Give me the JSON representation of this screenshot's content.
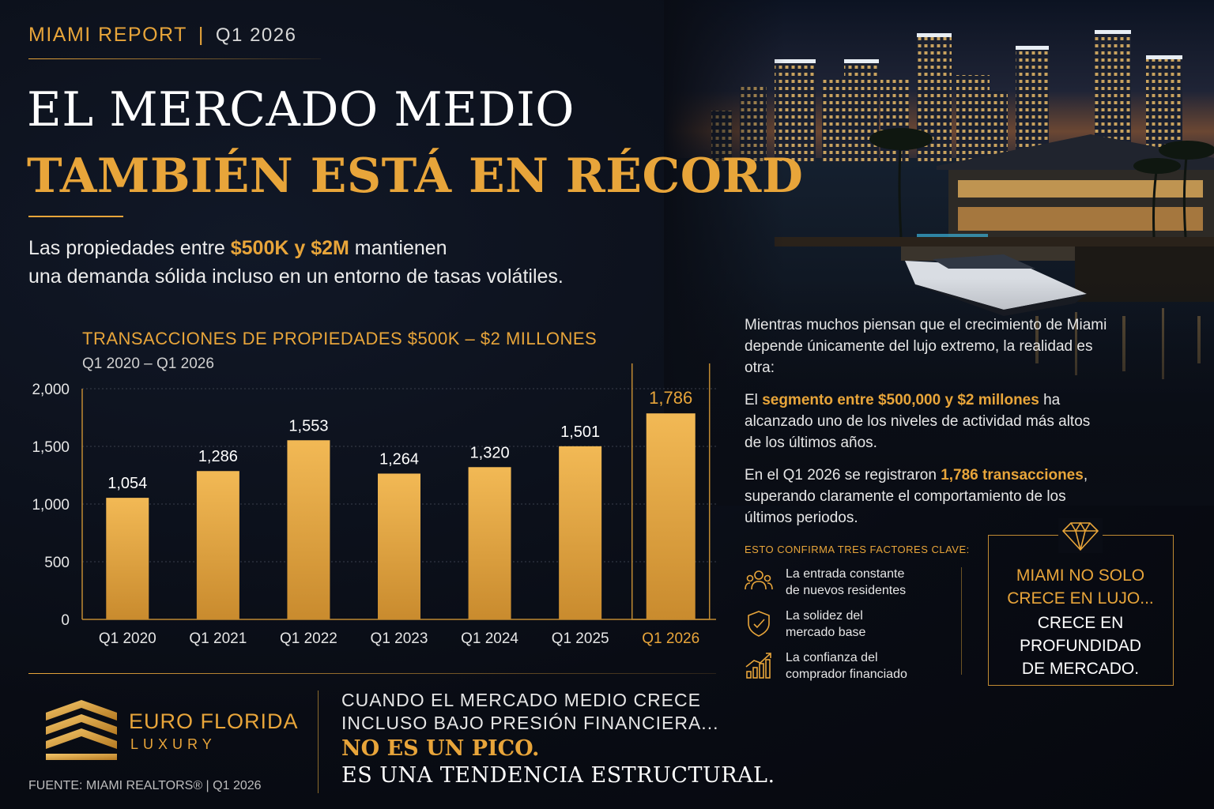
{
  "header": {
    "report_label": "MIAMI REPORT",
    "separator": "|",
    "period": "Q1 2026",
    "title_line1": "EL MERCADO MEDIO",
    "title_line2": "TAMBIÉN ESTÁ EN RÉCORD"
  },
  "subtitle": {
    "part1": "Las propiedades entre ",
    "highlight": "$500K y $2M",
    "part2": " mantienen",
    "line2": "una demanda sólida incluso en un entorno de tasas volátiles."
  },
  "chart_data": {
    "type": "bar",
    "title": "TRANSACCIONES DE PROPIEDADES $500K – $2 MILLONES",
    "subtitle": "Q1 2020 – Q1 2026",
    "categories": [
      "Q1 2020",
      "Q1 2021",
      "Q1 2022",
      "Q1 2023",
      "Q1 2024",
      "Q1 2025",
      "Q1 2026"
    ],
    "values": [
      1054,
      1286,
      1553,
      1264,
      1320,
      1501,
      1786
    ],
    "value_labels": [
      "1,054",
      "1,286",
      "1,553",
      "1,264",
      "1,320",
      "1,501",
      "1,786"
    ],
    "yticks": [
      0,
      500,
      1000,
      1500,
      2000
    ],
    "ytick_labels": [
      "0",
      "500",
      "1,000",
      "1,500",
      "2,000"
    ],
    "ylim": [
      0,
      2000
    ],
    "highlight_index": 6,
    "grid": true,
    "bar_color": "#e0a03c",
    "highlight_label_color": "#e8a53a"
  },
  "right_text": {
    "p1": "Mientras muchos piensan que el crecimiento de Miami depende únicamente del lujo extremo, la realidad es otra:",
    "p2_pre": "El ",
    "p2_highlight": "segmento entre $500,000 y $2 millones",
    "p2_post": " ha alcanzado uno de los niveles de actividad más altos de los últimos años.",
    "p3_pre": "En el Q1 2026 se registraron ",
    "p3_highlight": "1,786 transacciones",
    "p3_post": ", superando claramente el comportamiento de los últimos periodos."
  },
  "factors": {
    "title": "ESTO CONFIRMA TRES FACTORES CLAVE:",
    "items": [
      {
        "icon": "people-icon",
        "line1": "La entrada constante",
        "line2": "de nuevos residentes"
      },
      {
        "icon": "shield-icon",
        "line1": "La solidez del",
        "line2": "mercado base"
      },
      {
        "icon": "growth-chart-icon",
        "line1": "La confianza del",
        "line2": "comprador financiado"
      }
    ]
  },
  "callout": {
    "icon": "diamond-icon",
    "gold_line1": "MIAMI NO SOLO",
    "gold_line2": "CRECE EN LUJO...",
    "white_line1": "CRECE EN",
    "white_line2": "PROFUNDIDAD",
    "white_line3": "DE MERCADO."
  },
  "footer": {
    "brand_name": "EURO FLORIDA",
    "brand_sub": "LUXURY",
    "source": "FUENTE: MIAMI REALTORS® | Q1 2026",
    "line1": "CUANDO EL MERCADO MEDIO CRECE",
    "line2": "INCLUSO BAJO PRESIÓN FINANCIERA...",
    "line3": "NO ES UN PICO.",
    "line4": "ES UNA TENDENCIA ESTRUCTURAL."
  },
  "colors": {
    "accent_gold": "#e8a53a",
    "background": "#0b0f18"
  }
}
